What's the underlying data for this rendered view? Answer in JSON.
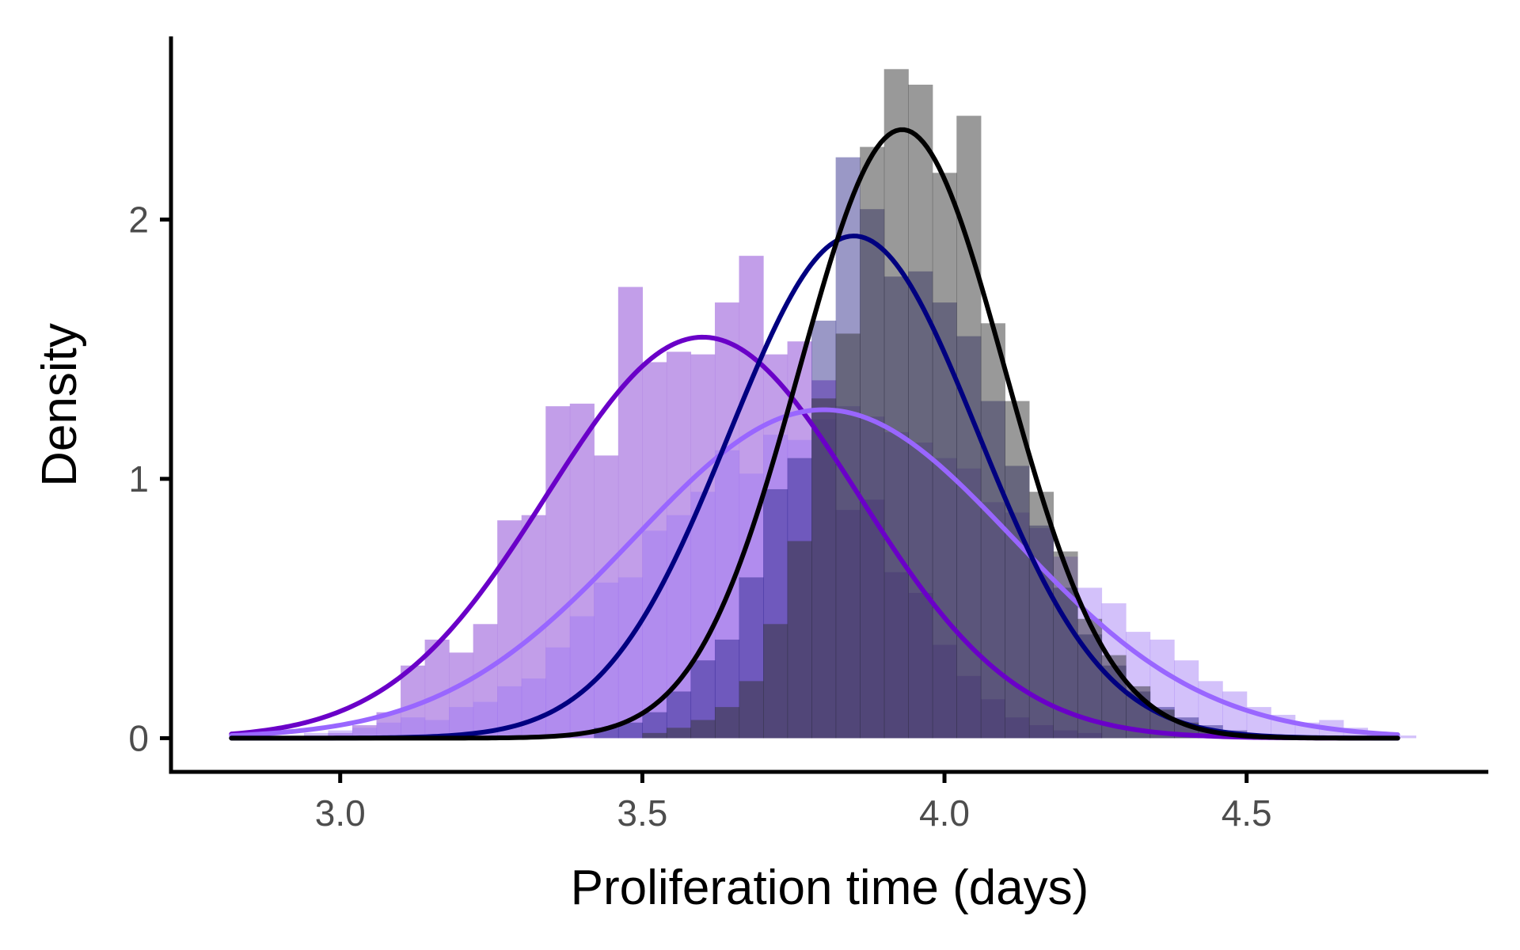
{
  "chart_data": {
    "type": "histogram",
    "title": "",
    "xlabel": "Proliferation time (days)",
    "ylabel": "Density",
    "xlim": [
      2.72,
      4.9
    ],
    "ylim": [
      -0.13,
      2.7
    ],
    "x_ticks": [
      3.0,
      3.5,
      4.0,
      4.5
    ],
    "x_tick_labels": [
      "3.0",
      "3.5",
      "4.0",
      "4.5"
    ],
    "y_ticks": [
      0,
      1,
      2
    ],
    "y_tick_labels": [
      "0",
      "1",
      "2"
    ],
    "grid": false,
    "legend": "none",
    "bin_width": 0.04,
    "series": [
      {
        "fill_color": "#b386e3",
        "fill_opacity": 0.8,
        "line_color": "#6a00c8",
        "curve": {
          "mean": 3.6,
          "sd": 0.258,
          "x_range": [
            2.82,
            4.75
          ]
        },
        "bins": [
          [
            2.98,
            0.02
          ],
          [
            3.02,
            0.05
          ],
          [
            3.06,
            0.1
          ],
          [
            3.1,
            0.28
          ],
          [
            3.14,
            0.38
          ],
          [
            3.18,
            0.33
          ],
          [
            3.22,
            0.44
          ],
          [
            3.26,
            0.84
          ],
          [
            3.3,
            0.86
          ],
          [
            3.34,
            1.28
          ],
          [
            3.38,
            1.29
          ],
          [
            3.42,
            1.09
          ],
          [
            3.46,
            1.74
          ],
          [
            3.5,
            1.45
          ],
          [
            3.54,
            1.49
          ],
          [
            3.58,
            1.48
          ],
          [
            3.62,
            1.68
          ],
          [
            3.66,
            1.86
          ],
          [
            3.7,
            1.48
          ],
          [
            3.74,
            1.53
          ],
          [
            3.78,
            1.38
          ],
          [
            3.82,
            0.88
          ],
          [
            3.86,
            0.92
          ],
          [
            3.9,
            0.64
          ],
          [
            3.94,
            0.56
          ],
          [
            3.98,
            0.36
          ],
          [
            4.02,
            0.24
          ],
          [
            4.06,
            0.15
          ],
          [
            4.1,
            0.08
          ],
          [
            4.14,
            0.05
          ],
          [
            4.18,
            0.03
          ],
          [
            4.22,
            0.02
          ]
        ]
      },
      {
        "fill_color": "#9d75f5",
        "fill_opacity": 0.45,
        "line_color": "#9966ff",
        "curve": {
          "mean": 3.8,
          "sd": 0.315,
          "x_range": [
            2.82,
            4.75
          ]
        },
        "bins": [
          [
            2.94,
            0.02
          ],
          [
            2.98,
            0.03
          ],
          [
            3.02,
            0.04
          ],
          [
            3.06,
            0.06
          ],
          [
            3.1,
            0.08
          ],
          [
            3.14,
            0.07
          ],
          [
            3.18,
            0.12
          ],
          [
            3.22,
            0.14
          ],
          [
            3.26,
            0.2
          ],
          [
            3.3,
            0.23
          ],
          [
            3.34,
            0.35
          ],
          [
            3.38,
            0.47
          ],
          [
            3.42,
            0.6
          ],
          [
            3.46,
            0.62
          ],
          [
            3.5,
            0.8
          ],
          [
            3.54,
            0.86
          ],
          [
            3.58,
            0.95
          ],
          [
            3.62,
            1.11
          ],
          [
            3.66,
            1.02
          ],
          [
            3.7,
            1.17
          ],
          [
            3.74,
            1.15
          ],
          [
            3.78,
            1.23
          ],
          [
            3.82,
            1.28
          ],
          [
            3.86,
            1.24
          ],
          [
            3.9,
            1.18
          ],
          [
            3.94,
            1.14
          ],
          [
            3.98,
            1.08
          ],
          [
            4.02,
            1.04
          ],
          [
            4.06,
            0.91
          ],
          [
            4.1,
            0.87
          ],
          [
            4.14,
            0.81
          ],
          [
            4.18,
            0.7
          ],
          [
            4.22,
            0.58
          ],
          [
            4.26,
            0.52
          ],
          [
            4.3,
            0.41
          ],
          [
            4.34,
            0.38
          ],
          [
            4.38,
            0.3
          ],
          [
            4.42,
            0.22
          ],
          [
            4.46,
            0.18
          ],
          [
            4.5,
            0.12
          ],
          [
            4.54,
            0.09
          ],
          [
            4.58,
            0.06
          ],
          [
            4.62,
            0.07
          ],
          [
            4.66,
            0.04
          ],
          [
            4.7,
            0.02
          ],
          [
            4.74,
            0.01
          ]
        ]
      },
      {
        "fill_color": "#1f1a80",
        "fill_opacity": 0.45,
        "line_color": "#000080",
        "curve": {
          "mean": 3.85,
          "sd": 0.206,
          "x_range": [
            2.82,
            4.75
          ]
        },
        "bins": [
          [
            3.42,
            0.04
          ],
          [
            3.46,
            0.06
          ],
          [
            3.5,
            0.1
          ],
          [
            3.54,
            0.18
          ],
          [
            3.58,
            0.3
          ],
          [
            3.62,
            0.38
          ],
          [
            3.66,
            0.62
          ],
          [
            3.7,
            0.96
          ],
          [
            3.74,
            1.08
          ],
          [
            3.78,
            1.61
          ],
          [
            3.82,
            2.24
          ],
          [
            3.86,
            2.04
          ],
          [
            3.9,
            1.78
          ],
          [
            3.94,
            1.8
          ],
          [
            3.98,
            1.68
          ],
          [
            4.02,
            1.55
          ],
          [
            4.06,
            1.3
          ],
          [
            4.1,
            1.05
          ],
          [
            4.14,
            0.82
          ],
          [
            4.18,
            0.58
          ],
          [
            4.22,
            0.4
          ],
          [
            4.26,
            0.28
          ],
          [
            4.3,
            0.18
          ],
          [
            4.34,
            0.12
          ],
          [
            4.38,
            0.08
          ],
          [
            4.42,
            0.05
          ],
          [
            4.46,
            0.03
          ]
        ]
      },
      {
        "fill_color": "#333333",
        "fill_opacity": 0.5,
        "line_color": "#000000",
        "curve": {
          "mean": 3.93,
          "sd": 0.17,
          "x_range": [
            2.82,
            4.75
          ]
        },
        "bins": [
          [
            3.5,
            0.02
          ],
          [
            3.54,
            0.04
          ],
          [
            3.58,
            0.07
          ],
          [
            3.62,
            0.12
          ],
          [
            3.66,
            0.22
          ],
          [
            3.7,
            0.44
          ],
          [
            3.74,
            0.76
          ],
          [
            3.78,
            1.31
          ],
          [
            3.82,
            1.56
          ],
          [
            3.86,
            2.28
          ],
          [
            3.9,
            2.58
          ],
          [
            3.94,
            2.52
          ],
          [
            3.98,
            2.18
          ],
          [
            4.02,
            2.4
          ],
          [
            4.06,
            1.6
          ],
          [
            4.1,
            1.3
          ],
          [
            4.14,
            0.95
          ],
          [
            4.18,
            0.72
          ],
          [
            4.22,
            0.46
          ],
          [
            4.26,
            0.32
          ],
          [
            4.3,
            0.2
          ],
          [
            4.34,
            0.11
          ],
          [
            4.38,
            0.06
          ],
          [
            4.42,
            0.03
          ]
        ]
      }
    ]
  }
}
